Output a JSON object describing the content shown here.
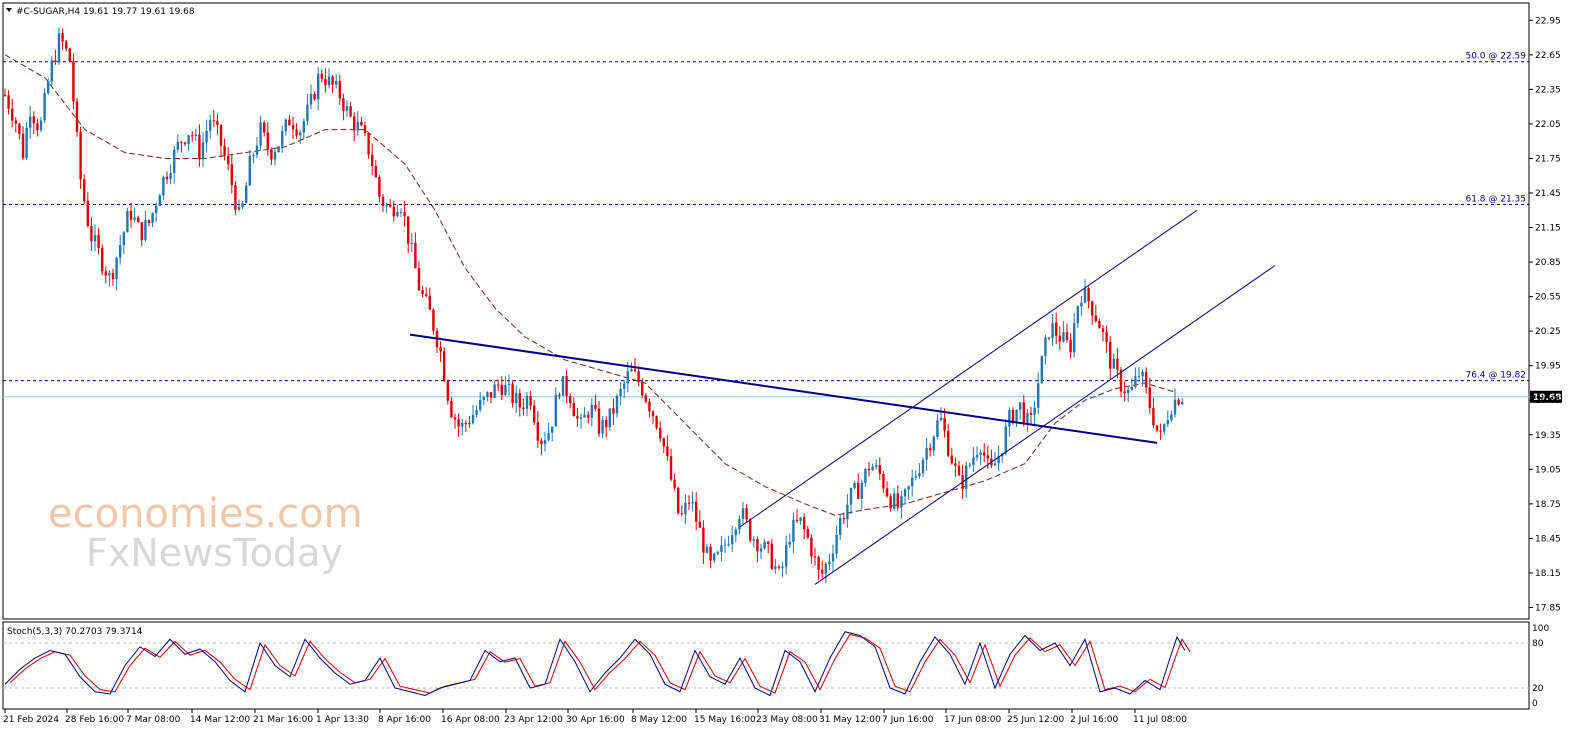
{
  "header": {
    "title": "#C-SUGAR,H4  19.61 19.77 19.61 19.68"
  },
  "watermark": {
    "line1": "economies.com",
    "line2": "FxNewsToday"
  },
  "stoch": {
    "label": "Stoch(5,3,3) 70.2703 79.3714",
    "k_last": 70.2703,
    "d_last": 79.3714,
    "levels": [
      20,
      80
    ],
    "scale_labels": [
      "100",
      "80",
      "20",
      "0"
    ]
  },
  "colors": {
    "bull": "#1f77b4",
    "bear": "#e00000",
    "ma": "#8b1a1a",
    "trend": "#00008b",
    "stoch_k": "#00008b",
    "stoch_d": "#e00000",
    "current_price_line": "#87cefa"
  },
  "chart_data": {
    "type": "candlestick",
    "symbol": "#C-SUGAR",
    "timeframe": "H4",
    "ohlc_last": {
      "open": 19.61,
      "high": 19.77,
      "low": 19.61,
      "close": 19.68
    },
    "ylim": [
      17.75,
      23.1
    ],
    "y_ticks": [
      "22.95",
      "22.65",
      "22.35",
      "22.05",
      "21.75",
      "21.45",
      "21.15",
      "20.85",
      "20.55",
      "20.25",
      "19.95",
      "19.65",
      "19.35",
      "19.05",
      "18.75",
      "18.45",
      "18.15",
      "17.85"
    ],
    "x_ticks": [
      "21 Feb 2024",
      "28 Feb 16:00",
      "7 Mar 08:00",
      "14 Mar 12:00",
      "21 Mar 16:00",
      "1 Apr 13:30",
      "8 Apr 16:00",
      "16 Apr 08:00",
      "23 Apr 12:00",
      "30 Apr 16:00",
      "8 May 12:00",
      "15 May 16:00",
      "23 May 08:00",
      "31 May 12:00",
      "7 Jun 16:00",
      "17 Jun 08:00",
      "25 Jun 12:00",
      "2 Jul 16:00",
      "11 Jul 08:00"
    ],
    "current_price": "19.68",
    "fib_levels": [
      {
        "label": "50.0 @ 22.59",
        "value": 22.59
      },
      {
        "label": "61.8 @ 21.35",
        "value": 21.35
      },
      {
        "label": "76.4 @ 19.82",
        "value": 19.82
      }
    ],
    "price_path": [
      [
        0,
        22.3
      ],
      [
        10,
        22.1
      ],
      [
        18,
        21.8
      ],
      [
        25,
        22.2
      ],
      [
        35,
        22.0
      ],
      [
        45,
        22.5
      ],
      [
        55,
        22.8
      ],
      [
        65,
        22.6
      ],
      [
        75,
        21.6
      ],
      [
        85,
        21.1
      ],
      [
        95,
        20.9
      ],
      [
        105,
        20.7
      ],
      [
        115,
        21.0
      ],
      [
        125,
        21.3
      ],
      [
        135,
        21.1
      ],
      [
        145,
        21.2
      ],
      [
        155,
        21.5
      ],
      [
        165,
        21.7
      ],
      [
        175,
        21.9
      ],
      [
        185,
        22.0
      ],
      [
        195,
        21.8
      ],
      [
        205,
        22.1
      ],
      [
        215,
        21.9
      ],
      [
        225,
        21.6
      ],
      [
        235,
        21.2
      ],
      [
        245,
        21.7
      ],
      [
        255,
        22.0
      ],
      [
        265,
        21.8
      ],
      [
        275,
        21.9
      ],
      [
        285,
        22.1
      ],
      [
        295,
        22.0
      ],
      [
        305,
        22.2
      ],
      [
        315,
        22.5
      ],
      [
        325,
        22.4
      ],
      [
        335,
        22.3
      ],
      [
        345,
        22.1
      ],
      [
        355,
        22.0
      ],
      [
        365,
        21.8
      ],
      [
        375,
        21.4
      ],
      [
        385,
        21.3
      ],
      [
        395,
        21.4
      ],
      [
        405,
        21.0
      ],
      [
        415,
        20.6
      ],
      [
        425,
        20.4
      ],
      [
        435,
        20.1
      ],
      [
        445,
        19.6
      ],
      [
        455,
        19.4
      ],
      [
        465,
        19.5
      ],
      [
        475,
        19.6
      ],
      [
        485,
        19.7
      ],
      [
        495,
        19.8
      ],
      [
        505,
        19.7
      ],
      [
        515,
        19.6
      ],
      [
        525,
        19.7
      ],
      [
        535,
        19.3
      ],
      [
        545,
        19.4
      ],
      [
        555,
        19.8
      ],
      [
        565,
        19.7
      ],
      [
        575,
        19.4
      ],
      [
        585,
        19.6
      ],
      [
        595,
        19.4
      ],
      [
        605,
        19.5
      ],
      [
        615,
        19.7
      ],
      [
        625,
        19.9
      ],
      [
        635,
        19.8
      ],
      [
        645,
        19.6
      ],
      [
        655,
        19.4
      ],
      [
        665,
        19.0
      ],
      [
        675,
        18.6
      ],
      [
        685,
        18.8
      ],
      [
        695,
        18.5
      ],
      [
        705,
        18.2
      ],
      [
        715,
        18.3
      ],
      [
        725,
        18.5
      ],
      [
        735,
        18.7
      ],
      [
        745,
        18.5
      ],
      [
        755,
        18.4
      ],
      [
        765,
        18.3
      ],
      [
        775,
        18.1
      ],
      [
        785,
        18.5
      ],
      [
        795,
        18.6
      ],
      [
        805,
        18.4
      ],
      [
        815,
        18.1
      ],
      [
        825,
        18.3
      ],
      [
        835,
        18.6
      ],
      [
        845,
        18.8
      ],
      [
        855,
        18.9
      ],
      [
        865,
        19.1
      ],
      [
        875,
        19.0
      ],
      [
        885,
        18.8
      ],
      [
        895,
        18.7
      ],
      [
        905,
        18.9
      ],
      [
        915,
        19.1
      ],
      [
        925,
        19.3
      ],
      [
        935,
        19.5
      ],
      [
        945,
        19.2
      ],
      [
        955,
        18.9
      ],
      [
        965,
        19.1
      ],
      [
        975,
        19.3
      ],
      [
        985,
        19.0
      ],
      [
        995,
        19.2
      ],
      [
        1005,
        19.5
      ],
      [
        1015,
        19.6
      ],
      [
        1025,
        19.4
      ],
      [
        1035,
        19.9
      ],
      [
        1045,
        20.3
      ],
      [
        1055,
        20.2
      ],
      [
        1065,
        20.1
      ],
      [
        1075,
        20.6
      ],
      [
        1085,
        20.5
      ],
      [
        1095,
        20.3
      ],
      [
        1105,
        20.0
      ],
      [
        1115,
        19.8
      ],
      [
        1125,
        19.7
      ],
      [
        1135,
        19.9
      ],
      [
        1145,
        19.6
      ],
      [
        1155,
        19.3
      ],
      [
        1165,
        19.6
      ],
      [
        1175,
        19.7
      ],
      [
        1180,
        19.68
      ]
    ],
    "ma_path": [
      [
        0,
        22.65
      ],
      [
        40,
        22.45
      ],
      [
        80,
        22.0
      ],
      [
        120,
        21.8
      ],
      [
        160,
        21.75
      ],
      [
        200,
        21.75
      ],
      [
        240,
        21.8
      ],
      [
        280,
        21.85
      ],
      [
        320,
        22.0
      ],
      [
        360,
        22.0
      ],
      [
        400,
        21.7
      ],
      [
        430,
        21.3
      ],
      [
        460,
        20.8
      ],
      [
        490,
        20.45
      ],
      [
        520,
        20.2
      ],
      [
        560,
        20.0
      ],
      [
        600,
        19.9
      ],
      [
        640,
        19.8
      ],
      [
        680,
        19.45
      ],
      [
        720,
        19.1
      ],
      [
        760,
        18.9
      ],
      [
        800,
        18.75
      ],
      [
        830,
        18.65
      ],
      [
        860,
        18.7
      ],
      [
        900,
        18.75
      ],
      [
        940,
        18.85
      ],
      [
        980,
        18.95
      ],
      [
        1020,
        19.1
      ],
      [
        1050,
        19.45
      ],
      [
        1080,
        19.65
      ],
      [
        1110,
        19.75
      ],
      [
        1140,
        19.8
      ],
      [
        1170,
        19.72
      ]
    ],
    "trendlines": [
      {
        "name": "neckline",
        "from": [
          410,
          20.22
        ],
        "to": [
          1157,
          19.28
        ]
      },
      {
        "name": "channel-upper",
        "from": [
          740,
          18.55
        ],
        "to": [
          1197,
          21.3
        ]
      },
      {
        "name": "channel-lower",
        "from": [
          815,
          18.05
        ],
        "to": [
          1275,
          20.82
        ]
      }
    ],
    "stoch_k_path": [
      [
        0,
        25
      ],
      [
        15,
        45
      ],
      [
        30,
        60
      ],
      [
        45,
        70
      ],
      [
        60,
        65
      ],
      [
        75,
        35
      ],
      [
        90,
        15
      ],
      [
        105,
        12
      ],
      [
        120,
        50
      ],
      [
        135,
        75
      ],
      [
        150,
        62
      ],
      [
        165,
        85
      ],
      [
        180,
        65
      ],
      [
        195,
        72
      ],
      [
        210,
        55
      ],
      [
        225,
        30
      ],
      [
        240,
        15
      ],
      [
        255,
        80
      ],
      [
        270,
        50
      ],
      [
        285,
        35
      ],
      [
        300,
        85
      ],
      [
        315,
        60
      ],
      [
        330,
        40
      ],
      [
        345,
        25
      ],
      [
        360,
        30
      ],
      [
        375,
        60
      ],
      [
        390,
        20
      ],
      [
        405,
        15
      ],
      [
        420,
        10
      ],
      [
        435,
        20
      ],
      [
        450,
        25
      ],
      [
        465,
        30
      ],
      [
        480,
        70
      ],
      [
        495,
        55
      ],
      [
        510,
        60
      ],
      [
        525,
        20
      ],
      [
        540,
        25
      ],
      [
        555,
        85
      ],
      [
        570,
        55
      ],
      [
        585,
        15
      ],
      [
        600,
        40
      ],
      [
        615,
        60
      ],
      [
        630,
        85
      ],
      [
        645,
        65
      ],
      [
        660,
        25
      ],
      [
        675,
        15
      ],
      [
        690,
        70
      ],
      [
        705,
        35
      ],
      [
        720,
        25
      ],
      [
        735,
        60
      ],
      [
        750,
        20
      ],
      [
        765,
        10
      ],
      [
        780,
        70
      ],
      [
        795,
        55
      ],
      [
        810,
        15
      ],
      [
        825,
        60
      ],
      [
        840,
        95
      ],
      [
        855,
        90
      ],
      [
        870,
        75
      ],
      [
        885,
        20
      ],
      [
        900,
        12
      ],
      [
        915,
        55
      ],
      [
        930,
        88
      ],
      [
        945,
        65
      ],
      [
        960,
        25
      ],
      [
        975,
        80
      ],
      [
        990,
        20
      ],
      [
        1005,
        65
      ],
      [
        1020,
        90
      ],
      [
        1035,
        70
      ],
      [
        1050,
        80
      ],
      [
        1065,
        50
      ],
      [
        1080,
        85
      ],
      [
        1095,
        15
      ],
      [
        1110,
        20
      ],
      [
        1125,
        12
      ],
      [
        1140,
        30
      ],
      [
        1155,
        18
      ],
      [
        1165,
        60
      ],
      [
        1172,
        88
      ],
      [
        1180,
        70
      ]
    ]
  }
}
